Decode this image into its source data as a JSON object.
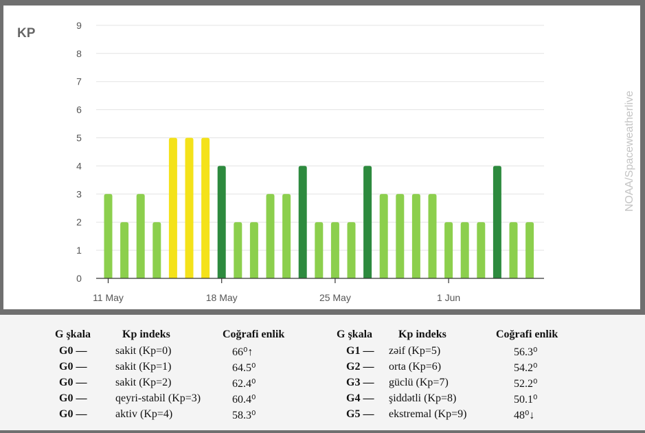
{
  "chart_data": {
    "type": "bar",
    "ylabel": "KP",
    "ylim": [
      0,
      9
    ],
    "yticks": [
      "0",
      "1",
      "2",
      "3",
      "4",
      "5",
      "6",
      "7",
      "8",
      "9"
    ],
    "x_tick_labels": [
      "11 May",
      "18 May",
      "25 May",
      "1 Jun"
    ],
    "categories": [
      "11 May",
      "12 May",
      "13 May",
      "14 May",
      "15 May",
      "16 May",
      "17 May",
      "18 May",
      "19 May",
      "20 May",
      "21 May",
      "22 May",
      "23 May",
      "24 May",
      "25 May",
      "26 May",
      "27 May",
      "28 May",
      "29 May",
      "30 May",
      "31 May",
      "1 Jun",
      "2 Jun",
      "3 Jun",
      "4 Jun",
      "5 Jun",
      "6 Jun"
    ],
    "values": [
      3,
      2,
      3,
      2,
      5,
      5,
      5,
      4,
      2,
      2,
      3,
      3,
      4,
      2,
      2,
      2,
      4,
      3,
      3,
      3,
      3,
      2,
      2,
      2,
      4,
      2,
      2
    ],
    "colors": {
      "low": "#8ccf4d",
      "medium": "#2d8a3e",
      "high": "#f4e21a"
    },
    "grid": true,
    "watermark": "NOAA/Spaceweatherlive"
  },
  "legend": {
    "headers": {
      "scale": "G şkala",
      "index": "Kp indeks",
      "lat": "Coğrafi enlik"
    },
    "left": [
      {
        "g": "G0 —",
        "desc": "sakit (Kp=0)",
        "lat": "66⁰↑"
      },
      {
        "g": "G0 —",
        "desc": "sakit (Kp=1)",
        "lat": "64.5⁰"
      },
      {
        "g": "G0 —",
        "desc": "sakit (Kp=2)",
        "lat": "62.4⁰"
      },
      {
        "g": "G0 —",
        "desc": "qeyri-stabil (Kp=3)",
        "lat": "60.4⁰"
      },
      {
        "g": "G0 —",
        "desc": "aktiv (Kp=4)",
        "lat": "58.3⁰"
      }
    ],
    "right": [
      {
        "g": "G1 —",
        "desc": "zəif (Kp=5)",
        "lat": "56.3⁰"
      },
      {
        "g": "G2 —",
        "desc": "orta (Kp=6)",
        "lat": "54.2⁰"
      },
      {
        "g": "G3 —",
        "desc": "güclü (Kp=7)",
        "lat": "52.2⁰"
      },
      {
        "g": "G4 —",
        "desc": "şiddətli (Kp=8)",
        "lat": "50.1⁰"
      },
      {
        "g": "G5 —",
        "desc": "ekstremal (Kp=9)",
        "lat": "48⁰↓"
      }
    ]
  }
}
